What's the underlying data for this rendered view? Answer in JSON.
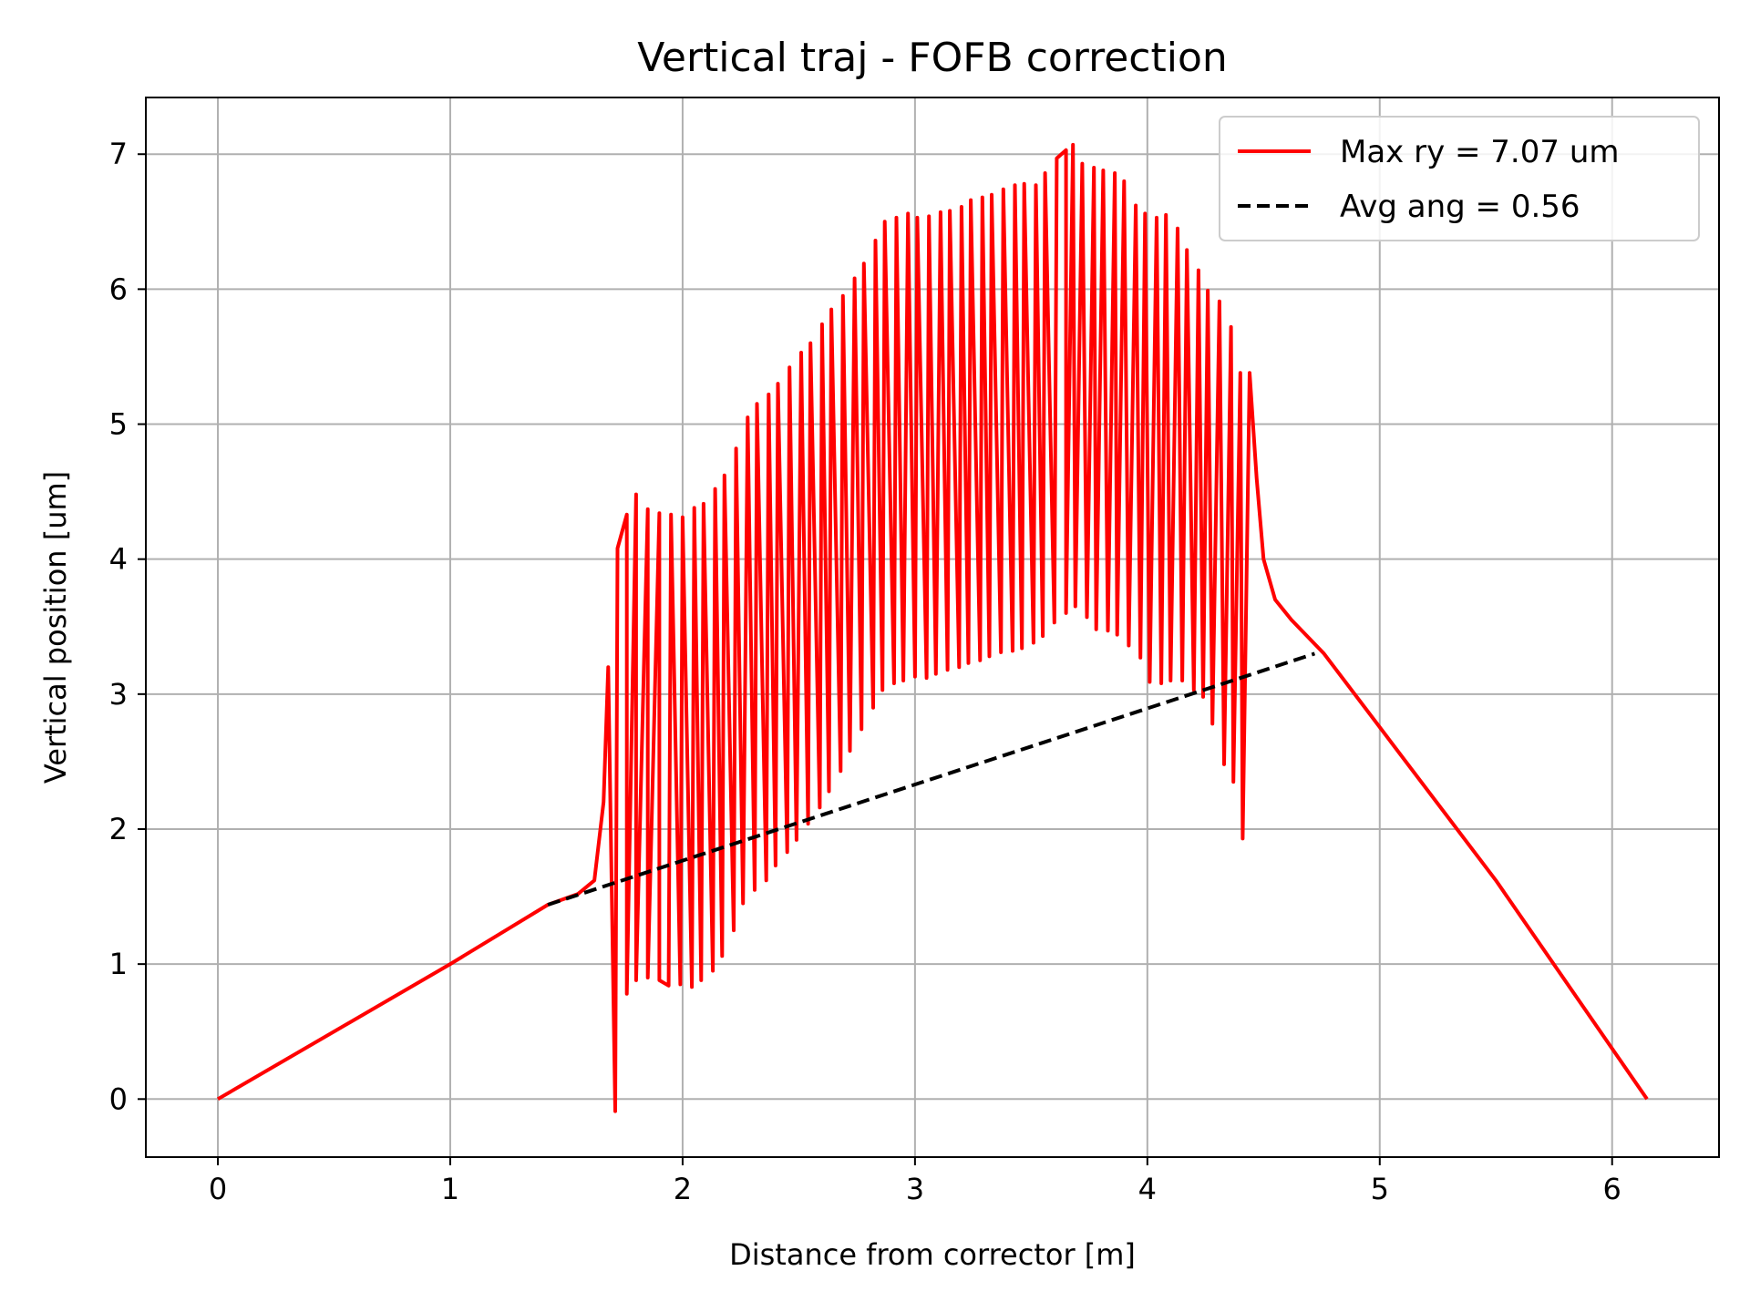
{
  "chart_data": {
    "type": "line",
    "title": "Vertical traj - FOFB correction",
    "xlabel": "Distance from corrector [m]",
    "ylabel": "Vertical position [um]",
    "xlim": [
      -0.31,
      6.46
    ],
    "ylim": [
      -0.43,
      7.42
    ],
    "xticks": [
      0,
      1,
      2,
      3,
      4,
      5,
      6
    ],
    "yticks": [
      0,
      1,
      2,
      3,
      4,
      5,
      6,
      7
    ],
    "grid": true,
    "legend_position": "upper-right",
    "series": [
      {
        "name": "Max ry = 7.07 um",
        "color": "#ff0000",
        "style": "solid",
        "envelope": {
          "x_start": 1.7,
          "x_end": 4.42,
          "peaks": [
            [
              1.72,
              4.08
            ],
            [
              1.76,
              4.33
            ],
            [
              1.8,
              4.48
            ],
            [
              1.85,
              4.37
            ],
            [
              1.9,
              4.34
            ],
            [
              1.95,
              4.33
            ],
            [
              2.0,
              4.31
            ],
            [
              2.05,
              4.38
            ],
            [
              2.09,
              4.41
            ],
            [
              2.14,
              4.52
            ],
            [
              2.18,
              4.62
            ],
            [
              2.23,
              4.82
            ],
            [
              2.28,
              5.05
            ],
            [
              2.32,
              5.15
            ],
            [
              2.37,
              5.22
            ],
            [
              2.41,
              5.3
            ],
            [
              2.46,
              5.42
            ],
            [
              2.51,
              5.53
            ],
            [
              2.55,
              5.6
            ],
            [
              2.6,
              5.74
            ],
            [
              2.64,
              5.85
            ],
            [
              2.69,
              5.95
            ],
            [
              2.74,
              6.08
            ],
            [
              2.78,
              6.19
            ],
            [
              2.83,
              6.36
            ],
            [
              2.87,
              6.5
            ],
            [
              2.92,
              6.53
            ],
            [
              2.97,
              6.56
            ],
            [
              3.01,
              6.53
            ],
            [
              3.06,
              6.54
            ],
            [
              3.11,
              6.57
            ],
            [
              3.15,
              6.58
            ],
            [
              3.2,
              6.61
            ],
            [
              3.24,
              6.66
            ],
            [
              3.29,
              6.68
            ],
            [
              3.33,
              6.7
            ],
            [
              3.38,
              6.74
            ],
            [
              3.43,
              6.77
            ],
            [
              3.47,
              6.78
            ],
            [
              3.52,
              6.77
            ],
            [
              3.56,
              6.86
            ],
            [
              3.61,
              6.97
            ],
            [
              3.65,
              7.03
            ],
            [
              3.68,
              7.07
            ],
            [
              3.72,
              6.93
            ],
            [
              3.77,
              6.9
            ],
            [
              3.81,
              6.88
            ],
            [
              3.86,
              6.86
            ],
            [
              3.9,
              6.8
            ],
            [
              3.95,
              6.62
            ],
            [
              3.99,
              6.56
            ],
            [
              4.04,
              6.53
            ],
            [
              4.08,
              6.55
            ],
            [
              4.13,
              6.45
            ],
            [
              4.17,
              6.29
            ],
            [
              4.22,
              6.14
            ],
            [
              4.26,
              5.99
            ],
            [
              4.31,
              5.91
            ],
            [
              4.36,
              5.72
            ],
            [
              4.4,
              5.38
            ]
          ],
          "troughs": [
            [
              1.71,
              -0.09
            ],
            [
              1.76,
              0.78
            ],
            [
              1.8,
              0.88
            ],
            [
              1.85,
              0.9
            ],
            [
              1.9,
              0.88
            ],
            [
              1.94,
              0.84
            ],
            [
              1.99,
              0.85
            ],
            [
              2.04,
              0.83
            ],
            [
              2.08,
              0.88
            ],
            [
              2.13,
              0.95
            ],
            [
              2.17,
              1.06
            ],
            [
              2.22,
              1.25
            ],
            [
              2.26,
              1.45
            ],
            [
              2.31,
              1.55
            ],
            [
              2.36,
              1.62
            ],
            [
              2.4,
              1.73
            ],
            [
              2.45,
              1.83
            ],
            [
              2.49,
              1.92
            ],
            [
              2.54,
              2.04
            ],
            [
              2.59,
              2.16
            ],
            [
              2.63,
              2.28
            ],
            [
              2.68,
              2.43
            ],
            [
              2.72,
              2.58
            ],
            [
              2.77,
              2.74
            ],
            [
              2.82,
              2.9
            ],
            [
              2.86,
              3.03
            ],
            [
              2.91,
              3.08
            ],
            [
              2.95,
              3.1
            ],
            [
              3.0,
              3.13
            ],
            [
              3.05,
              3.12
            ],
            [
              3.09,
              3.15
            ],
            [
              3.14,
              3.18
            ],
            [
              3.19,
              3.2
            ],
            [
              3.23,
              3.23
            ],
            [
              3.28,
              3.25
            ],
            [
              3.32,
              3.28
            ],
            [
              3.37,
              3.31
            ],
            [
              3.42,
              3.32
            ],
            [
              3.46,
              3.34
            ],
            [
              3.51,
              3.38
            ],
            [
              3.55,
              3.43
            ],
            [
              3.6,
              3.53
            ],
            [
              3.65,
              3.6
            ],
            [
              3.69,
              3.65
            ],
            [
              3.74,
              3.57
            ],
            [
              3.78,
              3.48
            ],
            [
              3.83,
              3.47
            ],
            [
              3.87,
              3.44
            ],
            [
              3.92,
              3.36
            ],
            [
              3.97,
              3.27
            ],
            [
              4.01,
              3.09
            ],
            [
              4.06,
              3.08
            ],
            [
              4.1,
              3.1
            ],
            [
              4.15,
              3.1
            ],
            [
              4.2,
              3.03
            ],
            [
              4.24,
              2.98
            ],
            [
              4.28,
              2.78
            ],
            [
              4.33,
              2.48
            ],
            [
              4.37,
              2.35
            ],
            [
              4.41,
              1.93
            ]
          ]
        },
        "tail_points": [
          [
            0.0,
            0.0
          ],
          [
            1.0,
            1.0
          ],
          [
            1.42,
            1.44
          ],
          [
            1.55,
            1.52
          ],
          [
            1.62,
            1.62
          ],
          [
            1.66,
            2.2
          ],
          [
            1.68,
            3.2
          ],
          [
            4.44,
            5.38
          ],
          [
            4.47,
            4.6
          ],
          [
            4.5,
            4.0
          ],
          [
            4.55,
            3.7
          ],
          [
            4.62,
            3.55
          ],
          [
            4.76,
            3.3
          ],
          [
            5.5,
            1.62
          ],
          [
            6.15,
            0.0
          ]
        ]
      },
      {
        "name": "Avg ang = 0.56",
        "color": "#000000",
        "style": "dashed",
        "points": [
          [
            1.42,
            1.44
          ],
          [
            4.72,
            3.3
          ]
        ]
      }
    ]
  }
}
